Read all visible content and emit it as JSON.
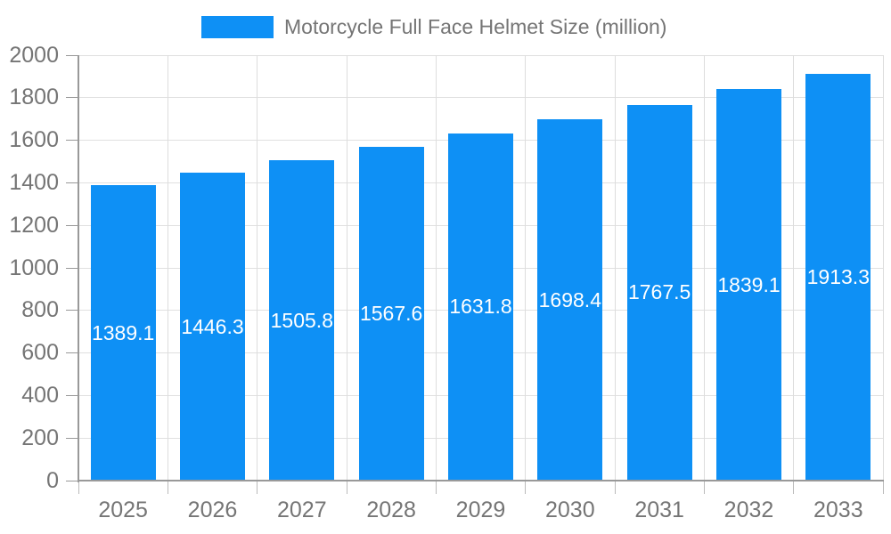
{
  "legend": {
    "items": [
      {
        "label": "Motorcycle Full Face Helmet Size (million)",
        "color": "#0e90f5"
      }
    ]
  },
  "chart_data": {
    "type": "bar",
    "title": "Motorcycle Full Face Helmet Size (million)",
    "categories": [
      "2025",
      "2026",
      "2027",
      "2028",
      "2029",
      "2030",
      "2031",
      "2032",
      "2033"
    ],
    "values": [
      1389.1,
      1446.3,
      1505.8,
      1567.6,
      1631.8,
      1698.4,
      1767.5,
      1839.1,
      1913.3
    ],
    "series": [
      {
        "name": "Motorcycle Full Face Helmet Size (million)",
        "values": [
          1389.1,
          1446.3,
          1505.8,
          1567.6,
          1631.8,
          1698.4,
          1767.5,
          1839.1,
          1913.3
        ]
      }
    ],
    "xlabel": "",
    "ylabel": "",
    "ylim": [
      0,
      2000
    ],
    "ytick_step": 200,
    "yticks": [
      0,
      200,
      400,
      600,
      800,
      1000,
      1200,
      1400,
      1600,
      1800,
      2000
    ],
    "grid": true,
    "legend_position": "top",
    "value_label_position": "inside-center",
    "colors": {
      "bar": "#0e90f5",
      "value_label": "#ffffff",
      "axis_text": "#757575",
      "grid_line": "#e0e0e0",
      "axis_line": "#999999",
      "background": "#ffffff"
    }
  }
}
